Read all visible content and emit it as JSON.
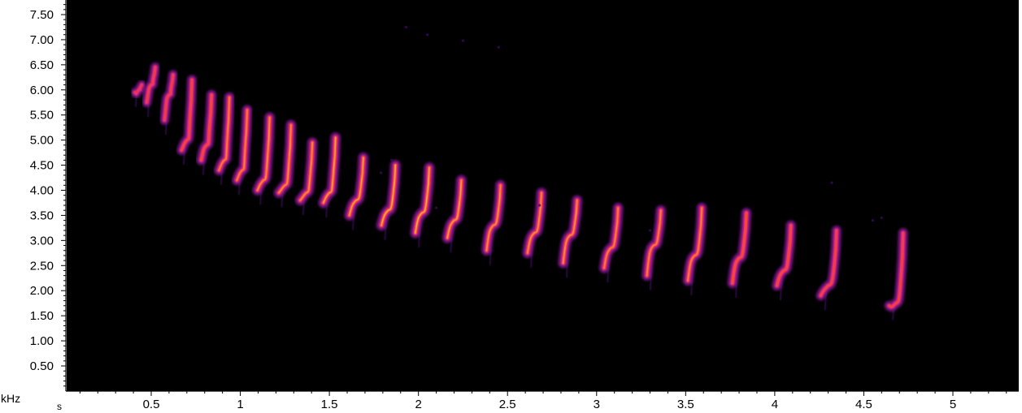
{
  "chart_data": {
    "type": "heatmap",
    "title": "",
    "xlabel": "s",
    "ylabel": "kHz",
    "xlim": [
      0,
      5.35
    ],
    "ylim": [
      0,
      7.75
    ],
    "x_ticks": [
      {
        "v": 0.5,
        "label": "0.5"
      },
      {
        "v": 1,
        "label": "1"
      },
      {
        "v": 1.5,
        "label": "1.5"
      },
      {
        "v": 2,
        "label": "2"
      },
      {
        "v": 2.5,
        "label": "2.5"
      },
      {
        "v": 3,
        "label": "3"
      },
      {
        "v": 3.5,
        "label": "3.5"
      },
      {
        "v": 4,
        "label": "4"
      },
      {
        "v": 4.5,
        "label": "4.5"
      },
      {
        "v": 5,
        "label": "5"
      }
    ],
    "y_ticks": [
      {
        "v": 0.5,
        "label": "0.50"
      },
      {
        "v": 1.0,
        "label": "1.00"
      },
      {
        "v": 1.5,
        "label": "1.50"
      },
      {
        "v": 2.0,
        "label": "2.00"
      },
      {
        "v": 2.5,
        "label": "2.50"
      },
      {
        "v": 3.0,
        "label": "3.00"
      },
      {
        "v": 3.5,
        "label": "3.50"
      },
      {
        "v": 4.0,
        "label": "4.00"
      },
      {
        "v": 4.5,
        "label": "4.50"
      },
      {
        "v": 5.0,
        "label": "5.00"
      },
      {
        "v": 5.5,
        "label": "5.50"
      },
      {
        "v": 6.0,
        "label": "6.00"
      },
      {
        "v": 6.5,
        "label": "6.50"
      },
      {
        "v": 7.0,
        "label": "7.00"
      },
      {
        "v": 7.5,
        "label": "7.50"
      }
    ],
    "background_color": "#000000",
    "colormap": [
      "#3a0a5a",
      "#8a1a9a",
      "#e0207a",
      "#ff5030",
      "#ffd040"
    ],
    "syllables": [
      {
        "t": 0.43,
        "f_top": 6.1,
        "f_bot": 5.95,
        "f_knee": 6.0,
        "intensity": 0.4,
        "dur": 0.02
      },
      {
        "t": 0.5,
        "f_top": 6.45,
        "f_bot": 5.75,
        "f_knee": 6.1,
        "intensity": 0.55,
        "dur": 0.03
      },
      {
        "t": 0.6,
        "f_top": 6.3,
        "f_bot": 5.4,
        "f_knee": 5.9,
        "intensity": 0.55,
        "dur": 0.03
      },
      {
        "t": 0.7,
        "f_top": 6.2,
        "f_bot": 4.8,
        "f_knee": 5.0,
        "intensity": 0.65,
        "dur": 0.04
      },
      {
        "t": 0.81,
        "f_top": 5.9,
        "f_bot": 4.6,
        "f_knee": 4.9,
        "intensity": 0.7,
        "dur": 0.04
      },
      {
        "t": 0.91,
        "f_top": 5.85,
        "f_bot": 4.4,
        "f_knee": 4.6,
        "intensity": 0.8,
        "dur": 0.04
      },
      {
        "t": 1.01,
        "f_top": 5.6,
        "f_bot": 4.2,
        "f_knee": 4.4,
        "intensity": 0.8,
        "dur": 0.04
      },
      {
        "t": 1.13,
        "f_top": 5.45,
        "f_bot": 4.0,
        "f_knee": 4.2,
        "intensity": 0.85,
        "dur": 0.05
      },
      {
        "t": 1.25,
        "f_top": 5.3,
        "f_bot": 3.95,
        "f_knee": 4.1,
        "intensity": 0.85,
        "dur": 0.05
      },
      {
        "t": 1.37,
        "f_top": 4.95,
        "f_bot": 3.8,
        "f_knee": 3.95,
        "intensity": 0.85,
        "dur": 0.05
      },
      {
        "t": 1.5,
        "f_top": 5.05,
        "f_bot": 3.75,
        "f_knee": 3.95,
        "intensity": 0.9,
        "dur": 0.05
      },
      {
        "t": 1.65,
        "f_top": 4.65,
        "f_bot": 3.5,
        "f_knee": 3.8,
        "intensity": 0.9,
        "dur": 0.06
      },
      {
        "t": 1.83,
        "f_top": 4.5,
        "f_bot": 3.3,
        "f_knee": 3.6,
        "intensity": 0.95,
        "dur": 0.06
      },
      {
        "t": 2.02,
        "f_top": 4.45,
        "f_bot": 3.15,
        "f_knee": 3.55,
        "intensity": 0.95,
        "dur": 0.06
      },
      {
        "t": 2.2,
        "f_top": 4.2,
        "f_bot": 3.05,
        "f_knee": 3.4,
        "intensity": 0.9,
        "dur": 0.06
      },
      {
        "t": 2.42,
        "f_top": 4.1,
        "f_bot": 2.8,
        "f_knee": 3.3,
        "intensity": 0.85,
        "dur": 0.06
      },
      {
        "t": 2.65,
        "f_top": 3.95,
        "f_bot": 2.75,
        "f_knee": 3.15,
        "intensity": 0.85,
        "dur": 0.06
      },
      {
        "t": 2.85,
        "f_top": 3.8,
        "f_bot": 2.55,
        "f_knee": 3.1,
        "intensity": 0.85,
        "dur": 0.06
      },
      {
        "t": 3.08,
        "f_top": 3.65,
        "f_bot": 2.45,
        "f_knee": 2.85,
        "intensity": 0.8,
        "dur": 0.06
      },
      {
        "t": 3.32,
        "f_top": 3.6,
        "f_bot": 2.3,
        "f_knee": 2.9,
        "intensity": 0.8,
        "dur": 0.06
      },
      {
        "t": 3.55,
        "f_top": 3.65,
        "f_bot": 2.2,
        "f_knee": 2.7,
        "intensity": 0.8,
        "dur": 0.06
      },
      {
        "t": 3.8,
        "f_top": 3.55,
        "f_bot": 2.15,
        "f_knee": 2.65,
        "intensity": 0.75,
        "dur": 0.06
      },
      {
        "t": 4.05,
        "f_top": 3.3,
        "f_bot": 2.1,
        "f_knee": 2.4,
        "intensity": 0.7,
        "dur": 0.06
      },
      {
        "t": 4.3,
        "f_top": 3.2,
        "f_bot": 1.9,
        "f_knee": 2.1,
        "intensity": 0.6,
        "dur": 0.07
      },
      {
        "t": 4.68,
        "f_top": 3.15,
        "f_bot": 1.7,
        "f_knee": 1.75,
        "intensity": 0.6,
        "dur": 0.06
      }
    ]
  }
}
